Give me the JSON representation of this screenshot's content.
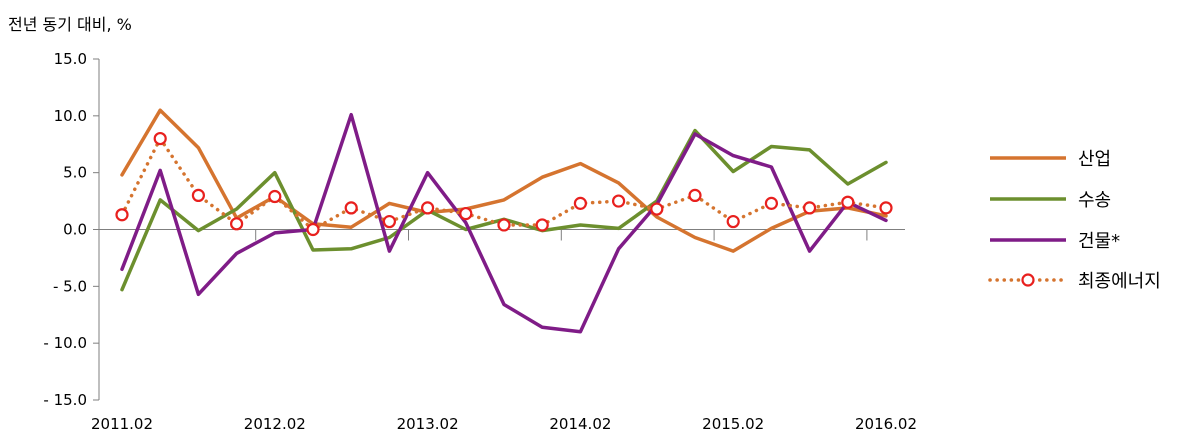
{
  "chart_data": {
    "type": "line",
    "ylabel": "전년 동기 대비, %",
    "ylim": [
      -15,
      15
    ],
    "y_ticks": [
      15,
      10,
      5,
      0,
      -5,
      -10,
      -15
    ],
    "y_tick_labels": [
      "15.0",
      "10.0",
      "5.0",
      "0.0",
      "- 5.0",
      "- 10.0",
      "- 15.0"
    ],
    "x_tick_labels": [
      "2011.02",
      "2012.02",
      "2013.02",
      "2014.02",
      "2015.02",
      "2016.02"
    ],
    "x_tick_positions": [
      0,
      4,
      8,
      12,
      16,
      20
    ],
    "x_count": 21,
    "grid": false,
    "legend_position": "right",
    "series": [
      {
        "name": "산업",
        "color": "#D5742F",
        "style": "solid",
        "values": [
          4.8,
          10.5,
          7.2,
          1.0,
          2.9,
          0.5,
          0.2,
          2.3,
          1.5,
          1.8,
          2.6,
          4.6,
          5.8,
          4.1,
          1.1,
          -0.7,
          -1.9,
          0.1,
          1.6,
          1.9,
          1.2
        ]
      },
      {
        "name": "수송",
        "color": "#6C8F2E",
        "style": "solid",
        "values": [
          -5.3,
          2.6,
          -0.1,
          1.8,
          5.0,
          -1.8,
          -1.7,
          -0.7,
          1.7,
          0.0,
          0.9,
          -0.1,
          0.4,
          0.1,
          2.5,
          8.7,
          5.1,
          7.3,
          7.0,
          4.0,
          5.9
        ]
      },
      {
        "name": "건물*",
        "color": "#7F1C87",
        "style": "solid",
        "values": [
          -3.5,
          5.2,
          -5.7,
          -2.1,
          -0.3,
          0.0,
          10.1,
          -1.9,
          5.0,
          0.6,
          -6.6,
          -8.6,
          -9.0,
          -1.7,
          2.2,
          8.4,
          6.5,
          5.5,
          -1.9,
          2.4,
          0.8
        ]
      },
      {
        "name": "최종에너지",
        "color": "#D5742F",
        "marker_color": "#E8201E",
        "style": "dotted",
        "values": [
          1.3,
          8.0,
          3.0,
          0.5,
          2.9,
          0.0,
          1.9,
          0.7,
          1.9,
          1.4,
          0.4,
          0.4,
          2.3,
          2.5,
          1.8,
          3.0,
          0.7,
          2.3,
          1.9,
          2.4,
          1.9
        ]
      }
    ]
  }
}
